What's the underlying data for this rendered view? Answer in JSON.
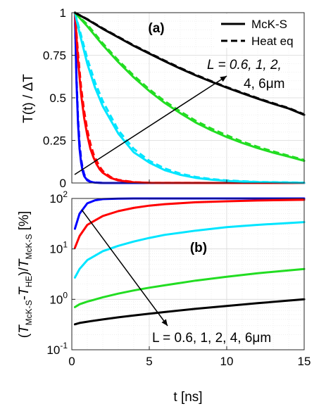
{
  "chart_data": [
    {
      "id": "a",
      "type": "line",
      "panel_label": "(a)",
      "xlabel": "",
      "ylabel": "T(t) / ΔT",
      "xlim": [
        0,
        15
      ],
      "ylim": [
        0,
        1
      ],
      "xticks": [
        "0",
        "5",
        "10",
        "15"
      ],
      "yticks": [
        "0",
        "0.25",
        "0.5",
        "0.75",
        "1"
      ],
      "scale": "linear",
      "grid": true,
      "legend": {
        "placement": "top-right",
        "entries": [
          {
            "label": "McK-S",
            "style": "solid"
          },
          {
            "label": "Heat eq",
            "style": "dashed"
          }
        ]
      },
      "annotation": {
        "line1": "L = 0.6, 1, 2,",
        "line2": "4, 6μm",
        "arrow": "increasing L"
      },
      "series": [
        {
          "L_um": 0.6,
          "color": "#0000ff",
          "model": "McK-S",
          "x": [
            0.2,
            0.3,
            0.4,
            0.5,
            0.6,
            0.7,
            0.8,
            1.0,
            1.2,
            1.5,
            2.0,
            3.0,
            5.0,
            10.0,
            15.0
          ],
          "y": [
            1.0,
            0.6,
            0.35,
            0.2,
            0.12,
            0.07,
            0.04,
            0.015,
            0.006,
            0.002,
            0.0,
            0.0,
            0.0,
            0.0,
            0.0
          ]
        },
        {
          "L_um": 0.6,
          "color": "#0000ff",
          "model": "Heat eq",
          "x": [
            0.2,
            0.3,
            0.4,
            0.5,
            0.6,
            0.7,
            0.8,
            1.0,
            1.2,
            1.5,
            2.0,
            3.0,
            5.0,
            10.0,
            15.0
          ],
          "y": [
            1.0,
            0.62,
            0.38,
            0.23,
            0.14,
            0.085,
            0.05,
            0.02,
            0.008,
            0.003,
            0.0,
            0.0,
            0.0,
            0.0,
            0.0
          ]
        },
        {
          "L_um": 1,
          "color": "#ff0000",
          "model": "McK-S",
          "x": [
            0.2,
            0.4,
            0.6,
            0.8,
            1.0,
            1.2,
            1.4,
            1.6,
            1.8,
            2.0,
            2.5,
            3.0,
            4.0,
            5.0,
            10.0,
            15.0
          ],
          "y": [
            1.0,
            0.72,
            0.52,
            0.38,
            0.28,
            0.2,
            0.15,
            0.11,
            0.08,
            0.06,
            0.03,
            0.015,
            0.004,
            0.001,
            0.0,
            0.0
          ]
        },
        {
          "L_um": 1,
          "color": "#ff0000",
          "model": "Heat eq",
          "x": [
            0.2,
            0.4,
            0.6,
            0.8,
            1.0,
            1.2,
            1.4,
            1.6,
            1.8,
            2.0,
            2.5,
            3.0,
            4.0,
            5.0,
            10.0,
            15.0
          ],
          "y": [
            1.0,
            0.76,
            0.56,
            0.42,
            0.31,
            0.23,
            0.17,
            0.13,
            0.095,
            0.07,
            0.035,
            0.018,
            0.005,
            0.001,
            0.0,
            0.0
          ]
        },
        {
          "L_um": 2,
          "color": "#00e5ff",
          "model": "McK-S",
          "x": [
            0.2,
            0.5,
            1.0,
            1.5,
            2.0,
            3.0,
            4.0,
            5.0,
            6.0,
            7.0,
            8.0,
            9.0,
            10.0,
            12.0,
            15.0
          ],
          "y": [
            1.0,
            0.88,
            0.7,
            0.56,
            0.45,
            0.29,
            0.18,
            0.12,
            0.075,
            0.048,
            0.03,
            0.02,
            0.012,
            0.005,
            0.001
          ]
        },
        {
          "L_um": 2,
          "color": "#00e5ff",
          "model": "Heat eq",
          "x": [
            0.2,
            0.5,
            1.0,
            1.5,
            2.0,
            3.0,
            4.0,
            5.0,
            6.0,
            7.0,
            8.0,
            9.0,
            10.0,
            12.0,
            15.0
          ],
          "y": [
            1.0,
            0.9,
            0.73,
            0.59,
            0.48,
            0.31,
            0.2,
            0.13,
            0.085,
            0.055,
            0.035,
            0.023,
            0.015,
            0.006,
            0.002
          ]
        },
        {
          "L_um": 4,
          "color": "#22dd22",
          "model": "McK-S",
          "x": [
            0.2,
            1.0,
            2.0,
            3.0,
            4.0,
            5.0,
            6.0,
            7.0,
            8.0,
            9.0,
            10.0,
            11.0,
            12.0,
            13.0,
            14.0,
            15.0
          ],
          "y": [
            1.0,
            0.92,
            0.81,
            0.71,
            0.62,
            0.54,
            0.47,
            0.41,
            0.355,
            0.31,
            0.27,
            0.235,
            0.205,
            0.178,
            0.155,
            0.13
          ]
        },
        {
          "L_um": 4,
          "color": "#22dd22",
          "model": "Heat eq",
          "x": [
            0.2,
            1.0,
            2.0,
            3.0,
            4.0,
            5.0,
            6.0,
            7.0,
            8.0,
            9.0,
            10.0,
            11.0,
            12.0,
            13.0,
            14.0,
            15.0
          ],
          "y": [
            1.0,
            0.93,
            0.82,
            0.72,
            0.63,
            0.55,
            0.48,
            0.42,
            0.365,
            0.32,
            0.28,
            0.243,
            0.212,
            0.185,
            0.16,
            0.135
          ]
        },
        {
          "L_um": 6,
          "color": "#000000",
          "model": "McK-S",
          "x": [
            0.2,
            1.0,
            2.0,
            3.0,
            4.0,
            5.0,
            6.0,
            7.0,
            8.0,
            9.0,
            10.0,
            11.0,
            12.0,
            13.0,
            14.0,
            15.0
          ],
          "y": [
            1.0,
            0.96,
            0.905,
            0.855,
            0.805,
            0.76,
            0.715,
            0.672,
            0.632,
            0.595,
            0.56,
            0.527,
            0.495,
            0.465,
            0.437,
            0.4
          ]
        },
        {
          "L_um": 6,
          "color": "#000000",
          "model": "Heat eq",
          "x": [
            0.2,
            1.0,
            2.0,
            3.0,
            4.0,
            5.0,
            6.0,
            7.0,
            8.0,
            9.0,
            10.0,
            11.0,
            12.0,
            13.0,
            14.0,
            15.0
          ],
          "y": [
            1.0,
            0.962,
            0.908,
            0.858,
            0.808,
            0.763,
            0.718,
            0.675,
            0.635,
            0.598,
            0.563,
            0.53,
            0.498,
            0.468,
            0.44,
            0.403
          ]
        }
      ]
    },
    {
      "id": "b",
      "type": "line",
      "panel_label": "(b)",
      "xlabel": "t [ns]",
      "ylabel": "(T_McK-S - T_HE)/T_McK-S [%]",
      "ylabel_parts": {
        "open": "(",
        "t1": "T",
        "s1": "McK-S",
        "minus": "-",
        "t2": "T",
        "s2": "HE",
        "close": ")/",
        "t3": "T",
        "s3": "McK-S",
        "unit": " [%]"
      },
      "xlim": [
        0,
        15
      ],
      "ylim": [
        0.1,
        100
      ],
      "scale": "log",
      "xticks": [
        "0",
        "5",
        "10",
        "15"
      ],
      "ytick_exponents": [
        "-1",
        "0",
        "1",
        "2"
      ],
      "ytick_base": "10",
      "grid": true,
      "annotation": {
        "text": "L = 0.6, 1, 2, 4, 6μm",
        "arrow": "increasing L"
      },
      "series": [
        {
          "L_um": 0.6,
          "color": "#0000ff",
          "x": [
            0.2,
            0.5,
            1.0,
            1.5,
            2.0,
            3.0,
            4.0,
            5.0,
            7.0,
            10.0,
            15.0
          ],
          "y": [
            25,
            50,
            80,
            92,
            97,
            99,
            100,
            100,
            100,
            100,
            100
          ]
        },
        {
          "L_um": 1,
          "color": "#ff0000",
          "x": [
            0.2,
            0.5,
            1.0,
            2.0,
            3.0,
            4.0,
            5.0,
            6.0,
            8.0,
            10.0,
            12.0,
            15.0
          ],
          "y": [
            10.5,
            18,
            30,
            45,
            56,
            65,
            72,
            77,
            84,
            88,
            91,
            94
          ]
        },
        {
          "L_um": 2,
          "color": "#00e5ff",
          "x": [
            0.2,
            0.5,
            1.0,
            2.0,
            3.0,
            4.0,
            5.0,
            6.0,
            8.0,
            10.0,
            12.0,
            15.0
          ],
          "y": [
            2.7,
            4.0,
            6.0,
            9.0,
            11.5,
            14,
            16.5,
            19,
            23,
            27,
            30,
            34
          ]
        },
        {
          "L_um": 4,
          "color": "#22dd22",
          "x": [
            0.2,
            0.5,
            1.0,
            2.0,
            3.0,
            4.0,
            5.0,
            6.0,
            8.0,
            10.0,
            12.0,
            15.0
          ],
          "y": [
            0.7,
            0.8,
            0.9,
            1.1,
            1.3,
            1.5,
            1.7,
            1.9,
            2.35,
            2.8,
            3.3,
            4.0
          ]
        },
        {
          "L_um": 6,
          "color": "#000000",
          "x": [
            0.2,
            0.5,
            1.0,
            2.0,
            3.0,
            4.0,
            5.0,
            6.0,
            8.0,
            10.0,
            12.0,
            15.0
          ],
          "y": [
            0.32,
            0.34,
            0.36,
            0.4,
            0.44,
            0.48,
            0.52,
            0.56,
            0.65,
            0.74,
            0.84,
            1.0
          ]
        }
      ]
    }
  ]
}
